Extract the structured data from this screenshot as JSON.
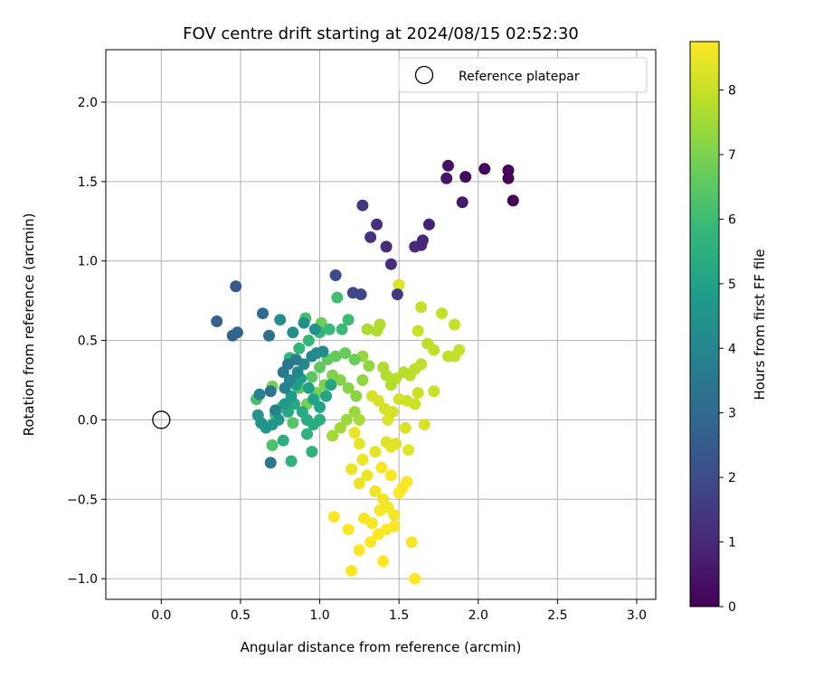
{
  "chart_data": {
    "type": "scatter",
    "title": "FOV centre drift starting at 2024/08/15 02:52:30",
    "xlabel": "Angular distance from reference (arcmin)",
    "ylabel": "Rotation from reference (arcmin)",
    "xlim": [
      -0.35,
      3.12
    ],
    "ylim": [
      -1.13,
      2.33
    ],
    "xticks": [
      0.0,
      0.5,
      1.0,
      1.5,
      2.0,
      2.5,
      3.0
    ],
    "xtick_labels": [
      "0.0",
      "0.5",
      "1.0",
      "1.5",
      "2.0",
      "2.5",
      "3.0"
    ],
    "yticks": [
      -1.0,
      -0.5,
      0.0,
      0.5,
      1.0,
      1.5,
      2.0
    ],
    "ytick_labels": [
      "−1.0",
      "−0.5",
      "0.0",
      "0.5",
      "1.0",
      "1.5",
      "2.0"
    ],
    "grid": true,
    "legend": {
      "position": "top-right",
      "entries": [
        "Reference platepar"
      ]
    },
    "reference_marker": {
      "x": 0.0,
      "y": 0.0
    },
    "colorbar": {
      "label": "Hours from first FF file",
      "colormap": "viridis",
      "range": [
        0,
        8.75
      ],
      "ticks": [
        0,
        1,
        2,
        3,
        4,
        5,
        6,
        7,
        8
      ],
      "tick_labels": [
        "0",
        "1",
        "2",
        "3",
        "4",
        "5",
        "6",
        "7",
        "8"
      ]
    },
    "points": [
      {
        "x": 2.22,
        "y": 1.38,
        "c": 0.05
      },
      {
        "x": 2.19,
        "y": 1.52,
        "c": 0.1
      },
      {
        "x": 2.19,
        "y": 1.57,
        "c": 0.15
      },
      {
        "x": 2.04,
        "y": 1.58,
        "c": 0.2
      },
      {
        "x": 1.92,
        "y": 1.53,
        "c": 0.3
      },
      {
        "x": 1.81,
        "y": 1.6,
        "c": 0.4
      },
      {
        "x": 1.8,
        "y": 1.52,
        "c": 0.5
      },
      {
        "x": 1.9,
        "y": 1.37,
        "c": 0.6
      },
      {
        "x": 1.69,
        "y": 1.23,
        "c": 0.8
      },
      {
        "x": 1.65,
        "y": 1.13,
        "c": 0.9
      },
      {
        "x": 1.64,
        "y": 1.1,
        "c": 1.0
      },
      {
        "x": 1.6,
        "y": 1.09,
        "c": 1.05
      },
      {
        "x": 1.42,
        "y": 1.09,
        "c": 1.1
      },
      {
        "x": 1.45,
        "y": 0.98,
        "c": 1.15
      },
      {
        "x": 1.36,
        "y": 1.23,
        "c": 1.2
      },
      {
        "x": 1.32,
        "y": 1.15,
        "c": 1.3
      },
      {
        "x": 1.27,
        "y": 1.35,
        "c": 1.4
      },
      {
        "x": 1.49,
        "y": 0.79,
        "c": 1.5
      },
      {
        "x": 1.21,
        "y": 0.8,
        "c": 1.8
      },
      {
        "x": 1.26,
        "y": 0.79,
        "c": 1.9
      },
      {
        "x": 1.1,
        "y": 0.91,
        "c": 2.0
      },
      {
        "x": 0.47,
        "y": 0.84,
        "c": 2.5
      },
      {
        "x": 0.35,
        "y": 0.62,
        "c": 2.7
      },
      {
        "x": 0.45,
        "y": 0.53,
        "c": 2.8
      },
      {
        "x": 0.48,
        "y": 0.55,
        "c": 2.9
      },
      {
        "x": 0.64,
        "y": 0.67,
        "c": 3.0
      },
      {
        "x": 0.68,
        "y": 0.53,
        "c": 3.2
      },
      {
        "x": 0.69,
        "y": 0.18,
        "c": 3.3
      },
      {
        "x": 0.69,
        "y": -0.27,
        "c": 3.4
      },
      {
        "x": 0.77,
        "y": 0.3,
        "c": 3.5
      },
      {
        "x": 0.8,
        "y": 0.35,
        "c": 3.6
      },
      {
        "x": 0.85,
        "y": 0.38,
        "c": 3.7
      },
      {
        "x": 0.62,
        "y": 0.16,
        "c": 3.8
      },
      {
        "x": 0.72,
        "y": 0.06,
        "c": 3.85
      },
      {
        "x": 0.78,
        "y": 0.2,
        "c": 3.9
      },
      {
        "x": 0.81,
        "y": 0.25,
        "c": 4.0
      },
      {
        "x": 0.86,
        "y": 0.3,
        "c": 4.05
      },
      {
        "x": 0.9,
        "y": 0.35,
        "c": 4.1
      },
      {
        "x": 0.95,
        "y": 0.4,
        "c": 4.15
      },
      {
        "x": 0.98,
        "y": 0.42,
        "c": 4.2
      },
      {
        "x": 1.02,
        "y": 0.43,
        "c": 4.25
      },
      {
        "x": 0.75,
        "y": 0.63,
        "c": 4.3
      },
      {
        "x": 0.83,
        "y": 0.55,
        "c": 4.35
      },
      {
        "x": 0.9,
        "y": 0.61,
        "c": 4.4
      },
      {
        "x": 0.97,
        "y": 0.57,
        "c": 4.45
      },
      {
        "x": 0.61,
        "y": 0.03,
        "c": 4.5
      },
      {
        "x": 0.63,
        "y": -0.02,
        "c": 4.55
      },
      {
        "x": 0.66,
        "y": -0.05,
        "c": 4.6
      },
      {
        "x": 0.7,
        "y": -0.03,
        "c": 4.65
      },
      {
        "x": 0.74,
        "y": 0.0,
        "c": 4.7
      },
      {
        "x": 0.78,
        "y": 0.1,
        "c": 4.75
      },
      {
        "x": 0.82,
        "y": 0.15,
        "c": 4.8
      },
      {
        "x": 0.85,
        "y": 0.22,
        "c": 4.85
      },
      {
        "x": 0.88,
        "y": 0.26,
        "c": 4.9
      },
      {
        "x": 0.93,
        "y": 0.2,
        "c": 4.95
      },
      {
        "x": 0.96,
        "y": 0.13,
        "c": 5.0
      },
      {
        "x": 1.0,
        "y": 0.08,
        "c": 5.05
      },
      {
        "x": 1.04,
        "y": 0.15,
        "c": 5.1
      },
      {
        "x": 1.07,
        "y": 0.22,
        "c": 5.15
      },
      {
        "x": 0.8,
        "y": 0.05,
        "c": 5.2
      },
      {
        "x": 0.84,
        "y": 0.1,
        "c": 5.25
      },
      {
        "x": 0.89,
        "y": 0.05,
        "c": 5.3
      },
      {
        "x": 0.92,
        "y": 0.0,
        "c": 5.35
      },
      {
        "x": 0.96,
        "y": -0.03,
        "c": 5.4
      },
      {
        "x": 1.0,
        "y": 0.0,
        "c": 5.45
      },
      {
        "x": 0.77,
        "y": -0.13,
        "c": 5.5
      },
      {
        "x": 0.82,
        "y": -0.26,
        "c": 5.55
      },
      {
        "x": 0.92,
        "y": -0.09,
        "c": 5.6
      },
      {
        "x": 0.95,
        "y": -0.2,
        "c": 5.65
      },
      {
        "x": 0.81,
        "y": 0.39,
        "c": 5.7
      },
      {
        "x": 0.87,
        "y": 0.45,
        "c": 5.75
      },
      {
        "x": 0.93,
        "y": 0.5,
        "c": 5.8
      },
      {
        "x": 1.0,
        "y": 0.55,
        "c": 5.85
      },
      {
        "x": 1.06,
        "y": 0.57,
        "c": 5.9
      },
      {
        "x": 1.14,
        "y": 0.57,
        "c": 5.95
      },
      {
        "x": 1.18,
        "y": 0.63,
        "c": 6.0
      },
      {
        "x": 1.11,
        "y": 0.77,
        "c": 6.1
      },
      {
        "x": 0.91,
        "y": 0.64,
        "c": 6.15
      },
      {
        "x": 0.6,
        "y": 0.13,
        "c": 6.2
      },
      {
        "x": 0.7,
        "y": -0.16,
        "c": 6.25
      },
      {
        "x": 0.72,
        "y": 0.03,
        "c": 6.3
      },
      {
        "x": 0.76,
        "y": 0.08,
        "c": 6.35
      },
      {
        "x": 0.83,
        "y": -0.02,
        "c": 6.4
      },
      {
        "x": 0.87,
        "y": 0.2,
        "c": 6.45
      },
      {
        "x": 0.95,
        "y": 0.27,
        "c": 6.5
      },
      {
        "x": 1.0,
        "y": 0.33,
        "c": 6.55
      },
      {
        "x": 1.05,
        "y": 0.38,
        "c": 6.6
      },
      {
        "x": 1.1,
        "y": 0.4,
        "c": 6.65
      },
      {
        "x": 1.16,
        "y": 0.42,
        "c": 6.7
      },
      {
        "x": 1.22,
        "y": 0.38,
        "c": 6.75
      },
      {
        "x": 1.01,
        "y": 0.61,
        "c": 6.8
      },
      {
        "x": 0.7,
        "y": 0.21,
        "c": 6.85
      },
      {
        "x": 0.92,
        "y": 0.1,
        "c": 6.9
      },
      {
        "x": 0.98,
        "y": 0.17,
        "c": 6.95
      },
      {
        "x": 1.03,
        "y": 0.22,
        "c": 7.0
      },
      {
        "x": 1.08,
        "y": 0.28,
        "c": 7.05
      },
      {
        "x": 1.13,
        "y": 0.25,
        "c": 7.1
      },
      {
        "x": 1.18,
        "y": 0.2,
        "c": 7.15
      },
      {
        "x": 1.23,
        "y": 0.15,
        "c": 7.2
      },
      {
        "x": 1.27,
        "y": 0.25,
        "c": 7.25
      },
      {
        "x": 1.31,
        "y": 0.34,
        "c": 7.3
      },
      {
        "x": 1.27,
        "y": 0.4,
        "c": 7.35
      },
      {
        "x": 1.22,
        "y": 0.05,
        "c": 7.4
      },
      {
        "x": 1.17,
        "y": 0.0,
        "c": 7.45
      },
      {
        "x": 1.13,
        "y": -0.05,
        "c": 7.5
      },
      {
        "x": 1.08,
        "y": -0.1,
        "c": 7.55
      },
      {
        "x": 1.25,
        "y": 0.0,
        "c": 7.6
      },
      {
        "x": 1.3,
        "y": 0.57,
        "c": 7.65
      },
      {
        "x": 1.36,
        "y": 0.56,
        "c": 7.7
      },
      {
        "x": 1.38,
        "y": 0.6,
        "c": 7.72
      },
      {
        "x": 1.4,
        "y": 0.33,
        "c": 7.74
      },
      {
        "x": 1.42,
        "y": 0.28,
        "c": 7.76
      },
      {
        "x": 1.45,
        "y": 0.22,
        "c": 7.78
      },
      {
        "x": 1.48,
        "y": 0.26,
        "c": 7.8
      },
      {
        "x": 1.53,
        "y": 0.3,
        "c": 7.82
      },
      {
        "x": 1.57,
        "y": 0.28,
        "c": 7.84
      },
      {
        "x": 1.6,
        "y": 0.32,
        "c": 7.86
      },
      {
        "x": 1.64,
        "y": 0.35,
        "c": 7.88
      },
      {
        "x": 1.68,
        "y": 0.48,
        "c": 7.9
      },
      {
        "x": 1.72,
        "y": 0.44,
        "c": 7.92
      },
      {
        "x": 1.77,
        "y": 0.67,
        "c": 7.94
      },
      {
        "x": 1.81,
        "y": 0.4,
        "c": 7.96
      },
      {
        "x": 1.85,
        "y": 0.4,
        "c": 7.98
      },
      {
        "x": 1.88,
        "y": 0.44,
        "c": 8.0
      },
      {
        "x": 1.85,
        "y": 0.6,
        "c": 8.02
      },
      {
        "x": 1.64,
        "y": 0.71,
        "c": 8.04
      },
      {
        "x": 1.62,
        "y": 0.56,
        "c": 8.06
      },
      {
        "x": 1.72,
        "y": 0.18,
        "c": 8.08
      },
      {
        "x": 1.62,
        "y": 0.17,
        "c": 8.1
      },
      {
        "x": 1.6,
        "y": 0.1,
        "c": 8.12
      },
      {
        "x": 1.55,
        "y": 0.12,
        "c": 8.14
      },
      {
        "x": 1.5,
        "y": 0.13,
        "c": 8.16
      },
      {
        "x": 1.46,
        "y": 0.05,
        "c": 8.18
      },
      {
        "x": 1.41,
        "y": 0.07,
        "c": 8.2
      },
      {
        "x": 1.37,
        "y": 0.12,
        "c": 8.22
      },
      {
        "x": 1.33,
        "y": 0.15,
        "c": 8.24
      },
      {
        "x": 1.66,
        "y": -0.03,
        "c": 8.26
      },
      {
        "x": 1.54,
        "y": -0.05,
        "c": 8.28
      },
      {
        "x": 1.43,
        "y": 0.0,
        "c": 8.3
      },
      {
        "x": 1.5,
        "y": 0.85,
        "c": 8.32
      },
      {
        "x": 1.42,
        "y": -0.14,
        "c": 8.34
      },
      {
        "x": 1.48,
        "y": -0.15,
        "c": 8.36
      },
      {
        "x": 1.56,
        "y": -0.19,
        "c": 8.38
      },
      {
        "x": 1.45,
        "y": -0.17,
        "c": 8.4
      },
      {
        "x": 1.35,
        "y": -0.2,
        "c": 8.42
      },
      {
        "x": 1.25,
        "y": -0.15,
        "c": 8.44
      },
      {
        "x": 1.22,
        "y": -0.08,
        "c": 8.46
      },
      {
        "x": 1.27,
        "y": -0.25,
        "c": 8.48
      },
      {
        "x": 1.2,
        "y": -0.31,
        "c": 8.5
      },
      {
        "x": 1.25,
        "y": -0.4,
        "c": 8.52
      },
      {
        "x": 1.3,
        "y": -0.35,
        "c": 8.54
      },
      {
        "x": 1.35,
        "y": -0.45,
        "c": 8.56
      },
      {
        "x": 1.4,
        "y": -0.5,
        "c": 8.58
      },
      {
        "x": 1.43,
        "y": -0.55,
        "c": 8.6
      },
      {
        "x": 1.47,
        "y": -0.6,
        "c": 8.62
      },
      {
        "x": 1.38,
        "y": -0.57,
        "c": 8.64
      },
      {
        "x": 1.33,
        "y": -0.65,
        "c": 8.66
      },
      {
        "x": 1.28,
        "y": -0.62,
        "c": 8.68
      },
      {
        "x": 1.52,
        "y": -0.43,
        "c": 8.7
      },
      {
        "x": 1.55,
        "y": -0.39,
        "c": 8.72
      },
      {
        "x": 1.42,
        "y": -0.69,
        "c": 8.73
      },
      {
        "x": 1.37,
        "y": -0.72,
        "c": 8.74
      },
      {
        "x": 1.32,
        "y": -0.77,
        "c": 8.74
      },
      {
        "x": 1.25,
        "y": -0.82,
        "c": 8.75
      },
      {
        "x": 1.2,
        "y": -0.95,
        "c": 8.75
      },
      {
        "x": 1.4,
        "y": -0.89,
        "c": 8.75
      },
      {
        "x": 1.6,
        "y": -1.0,
        "c": 8.75
      },
      {
        "x": 1.58,
        "y": -0.77,
        "c": 8.75
      },
      {
        "x": 1.09,
        "y": -0.61,
        "c": 8.75
      },
      {
        "x": 1.18,
        "y": -0.69,
        "c": 8.75
      },
      {
        "x": 1.47,
        "y": -0.67,
        "c": 8.75
      },
      {
        "x": 1.5,
        "y": -0.46,
        "c": 8.72
      },
      {
        "x": 1.45,
        "y": -0.35,
        "c": 8.7
      },
      {
        "x": 1.39,
        "y": -0.3,
        "c": 8.68
      }
    ]
  }
}
